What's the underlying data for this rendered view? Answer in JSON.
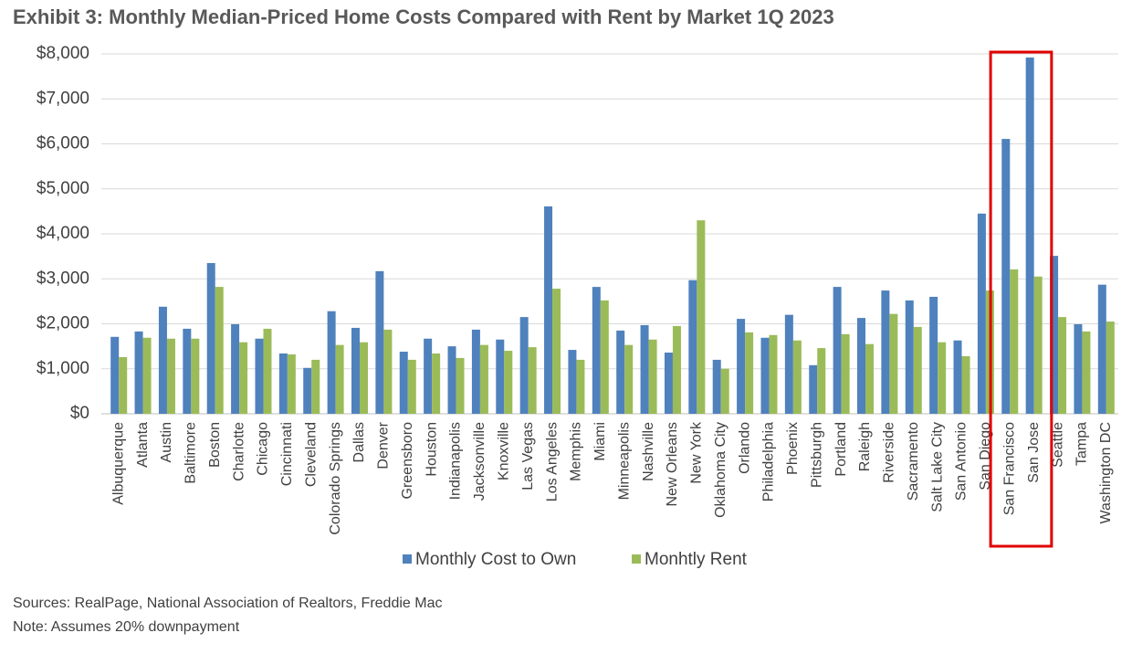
{
  "chart_data": {
    "type": "bar",
    "title": "Exhibit 3: Monthly Median-Priced Home Costs Compared with Rent by Market 1Q 2023",
    "categories": [
      "Albuquerque",
      "Atlanta",
      "Austin",
      "Baltimore",
      "Boston",
      "Charlotte",
      "Chicago",
      "Cincinnati",
      "Cleveland",
      "Colorado Springs",
      "Dallas",
      "Denver",
      "Greensboro",
      "Houston",
      "Indianapolis",
      "Jacksonville",
      "Knoxville",
      "Las Vegas",
      "Los Angeles",
      "Memphis",
      "Miami",
      "Minneapolis",
      "Nashville",
      "New Orleans",
      "New York",
      "Oklahoma City",
      "Orlando",
      "Philadelphia",
      "Phoenix",
      "Pittsburgh",
      "Portland",
      "Raleigh",
      "Riverside",
      "Sacramento",
      "Salt Lake City",
      "San Antonio",
      "San Diego",
      "San Francisco",
      "San Jose",
      "Seattle",
      "Tampa",
      "Washington DC"
    ],
    "series": [
      {
        "name": "Monthly Cost to Own",
        "color": "#4f81bd",
        "values": [
          1710,
          1830,
          2380,
          1890,
          3350,
          1990,
          1670,
          1340,
          1020,
          2280,
          1910,
          3170,
          1380,
          1670,
          1500,
          1870,
          1650,
          2150,
          4610,
          1420,
          2820,
          1850,
          1970,
          1360,
          2970,
          1200,
          2110,
          1690,
          2200,
          1080,
          2820,
          2130,
          2740,
          2520,
          2600,
          1630,
          4450,
          6110,
          7920,
          3510,
          1990,
          2870
        ]
      },
      {
        "name": "Monhtly Rent",
        "color": "#9bbb59",
        "values": [
          1260,
          1690,
          1670,
          1670,
          2820,
          1590,
          1890,
          1320,
          1200,
          1530,
          1590,
          1870,
          1200,
          1340,
          1240,
          1530,
          1400,
          1480,
          2780,
          1200,
          2520,
          1530,
          1650,
          1950,
          4300,
          1000,
          1810,
          1750,
          1630,
          1460,
          1770,
          1550,
          2220,
          1930,
          1590,
          1280,
          2740,
          3210,
          3050,
          2150,
          1830,
          2050
        ]
      }
    ],
    "ylim": [
      0,
      8000
    ],
    "yticks": [
      {
        "value": 0,
        "label": "$0"
      },
      {
        "value": 1000,
        "label": "$1,000"
      },
      {
        "value": 2000,
        "label": "$2,000"
      },
      {
        "value": 3000,
        "label": "$3,000"
      },
      {
        "value": 4000,
        "label": "$4,000"
      },
      {
        "value": 5000,
        "label": "$5,000"
      },
      {
        "value": 6000,
        "label": "$6,000"
      },
      {
        "value": 7000,
        "label": "$7,000"
      },
      {
        "value": 8000,
        "label": "$8,000"
      }
    ],
    "grid": true,
    "sources": "Sources: RealPage, National Association of Realtors, Freddie Mac",
    "note": "Note: Assumes 20% downpayment"
  }
}
